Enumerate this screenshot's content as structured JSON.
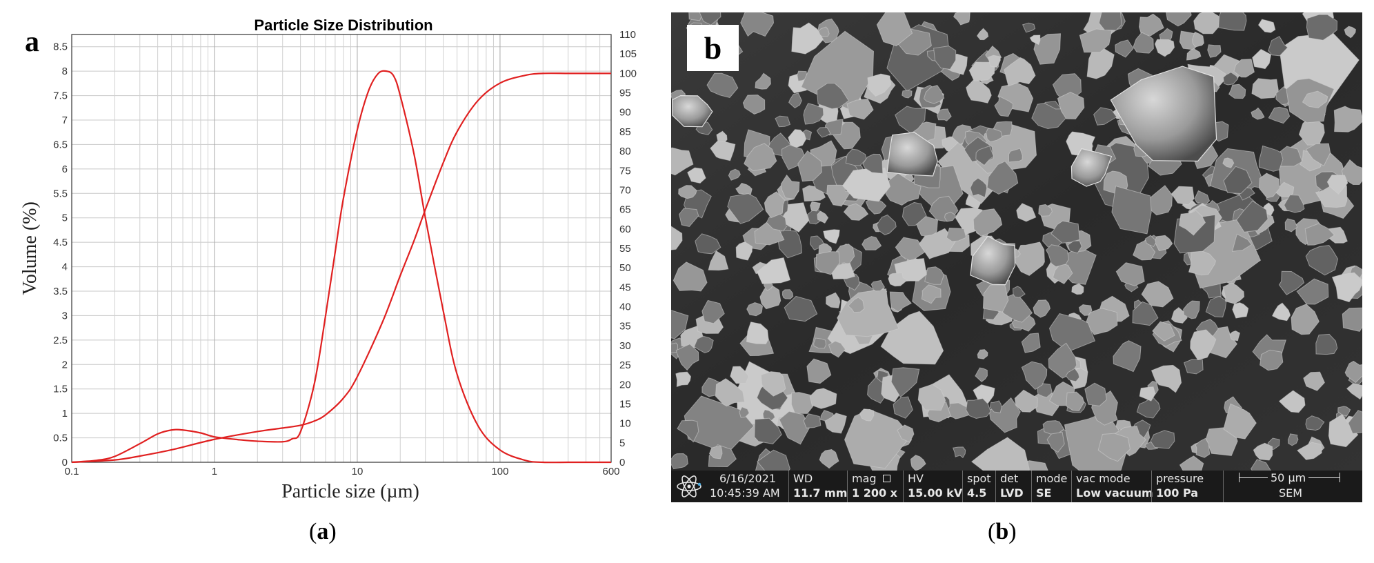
{
  "chart_data": {
    "type": "line",
    "panel_label": "a",
    "title": "Particle Size Distribution",
    "xlabel": "Particle size (µm)",
    "ylabel": "Volume (%)",
    "x_scale": "log",
    "xlim": [
      0.1,
      600
    ],
    "x_ticks": [
      "0.1",
      "1",
      "10",
      "100",
      "600"
    ],
    "ylim_left": [
      0,
      8.75
    ],
    "y_ticks_left": [
      "0",
      "0.5",
      "1",
      "1.5",
      "2",
      "2.5",
      "3",
      "3.5",
      "4",
      "4.5",
      "5",
      "5.5",
      "6",
      "6.5",
      "7",
      "7.5",
      "8",
      "8.5"
    ],
    "ylim_right": [
      0,
      110
    ],
    "y_ticks_right": [
      "0",
      "5",
      "10",
      "15",
      "20",
      "25",
      "30",
      "35",
      "40",
      "45",
      "50",
      "55",
      "60",
      "65",
      "70",
      "75",
      "80",
      "85",
      "90",
      "95",
      "100",
      "105",
      "110"
    ],
    "grid": true,
    "color": "#e02020",
    "series": [
      {
        "axis": "left",
        "x": [
          0.1,
          0.15,
          0.2,
          0.3,
          0.4,
          0.5,
          0.6,
          0.8,
          1,
          1.5,
          2,
          3,
          3.5,
          4,
          5,
          6,
          7,
          8,
          10,
          12,
          14,
          16,
          18,
          20,
          25,
          30,
          40,
          50,
          70,
          100,
          150,
          200,
          300,
          400,
          600
        ],
        "y": [
          0,
          0.04,
          0.12,
          0.38,
          0.58,
          0.66,
          0.66,
          0.6,
          0.52,
          0.46,
          0.43,
          0.42,
          0.48,
          0.62,
          1.6,
          3.0,
          4.3,
          5.4,
          6.8,
          7.6,
          7.95,
          8.0,
          7.9,
          7.5,
          6.3,
          5.0,
          3.1,
          1.8,
          0.75,
          0.25,
          0.04,
          0,
          0,
          0,
          0
        ]
      },
      {
        "axis": "right",
        "x": [
          0.1,
          0.2,
          0.3,
          0.5,
          1,
          2,
          3,
          4,
          5,
          6,
          8,
          10,
          15,
          20,
          25,
          30,
          40,
          50,
          70,
          100,
          150,
          200,
          300,
          400,
          600
        ],
        "y": [
          0,
          0.6,
          1.6,
          3.2,
          5.9,
          7.9,
          8.8,
          9.5,
          10.6,
          12.2,
          16.5,
          22,
          36,
          48,
          57,
          65,
          77,
          85,
          93,
          97.5,
          99.5,
          100,
          100,
          100,
          100
        ]
      }
    ]
  },
  "sem_panel": {
    "label": "b",
    "databar": {
      "date": "6/16/2021",
      "time": "10:45:39 AM",
      "wd_label": "WD",
      "wd_value": "11.7 mm",
      "mag_label": "mag",
      "mag_value": "1 200 x",
      "hv_label": "HV",
      "hv_value": "15.00 kV",
      "spot_label": "spot",
      "spot_value": "4.5",
      "det_label": "det",
      "det_value": "LVD",
      "mode_label": "mode",
      "mode_value": "SE",
      "vac_label": "vac mode",
      "vac_value": "Low vacuum",
      "pressure_label": "pressure",
      "pressure_value": "100 Pa",
      "scale_value": "50 µm",
      "scale_sub": "SEM"
    }
  },
  "captions": {
    "left_open": "(",
    "left_letter": "a",
    "left_close": ")",
    "right_open": "(",
    "right_letter": "b",
    "right_close": ")"
  }
}
